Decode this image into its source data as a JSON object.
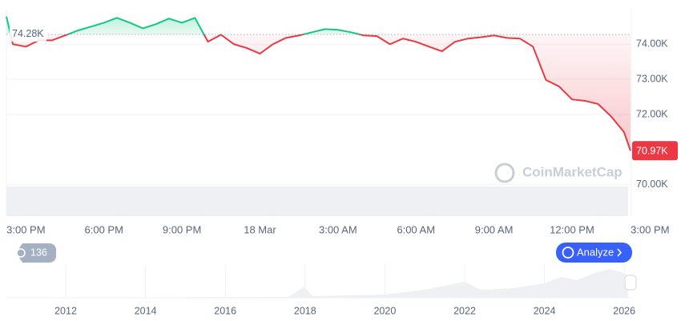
{
  "chart_data": {
    "type": "line",
    "x": [
      -1.5,
      -1,
      0,
      1,
      2,
      3,
      4,
      5,
      6,
      7,
      8,
      9,
      10,
      11,
      12,
      13,
      14,
      15,
      16,
      17,
      18,
      19,
      20,
      21,
      22,
      23,
      24,
      25,
      26,
      27,
      28,
      29,
      30,
      31,
      32,
      33,
      34,
      35,
      36,
      37,
      38,
      39,
      40,
      41,
      42,
      43,
      44,
      45,
      46,
      46.5
    ],
    "series": [
      {
        "values": [
          74790,
          74000,
          73930,
          74110,
          74110,
          74250,
          74390,
          74500,
          74610,
          74750,
          74610,
          74450,
          74570,
          74730,
          74610,
          74750,
          74070,
          74270,
          74000,
          73890,
          73730,
          74000,
          74180,
          74250,
          74340,
          74430,
          74410,
          74340,
          74250,
          74230,
          74000,
          74160,
          74070,
          73930,
          73800,
          74070,
          74160,
          74200,
          74250,
          74180,
          74160,
          73930,
          72980,
          72800,
          72430,
          72390,
          72300,
          71950,
          71500,
          70970
        ],
        "color_up": "#16c784",
        "color_down": "#ea3943"
      }
    ],
    "xlim": [
      -1.5,
      46.5
    ],
    "xticks": [
      {
        "value": 0,
        "label": "3:00 PM"
      },
      {
        "value": 6,
        "label": "6:00 PM"
      },
      {
        "value": 12,
        "label": "9:00 PM"
      },
      {
        "value": 18,
        "label": "18 Mar"
      },
      {
        "value": 24,
        "label": "3:00 AM"
      },
      {
        "value": 30,
        "label": "6:00 AM"
      },
      {
        "value": 36,
        "label": "9:00 AM"
      },
      {
        "value": 42,
        "label": "12:00 PM"
      },
      {
        "value": 48,
        "label": "3:00 PM"
      }
    ],
    "ylim": [
      69110,
      75030
    ],
    "yticks": [
      {
        "value": 74000,
        "label": "74.00K"
      },
      {
        "value": 73000,
        "label": "73.00K"
      },
      {
        "value": 72000,
        "label": "72.00K"
      },
      {
        "value": 70000,
        "label": "70.00K"
      }
    ],
    "grid": true,
    "baseline": {
      "value": 74280,
      "label": "74.28K"
    },
    "last_price": {
      "value": 70970,
      "label": "70.97K"
    },
    "watermark": "CoinMarketCap",
    "navigator_labels": [
      "2012",
      "2014",
      "2016",
      "2018",
      "2020",
      "2022",
      "2024",
      "2026"
    ]
  },
  "controls": {
    "history_count": 136,
    "analyze": "Analyze"
  }
}
